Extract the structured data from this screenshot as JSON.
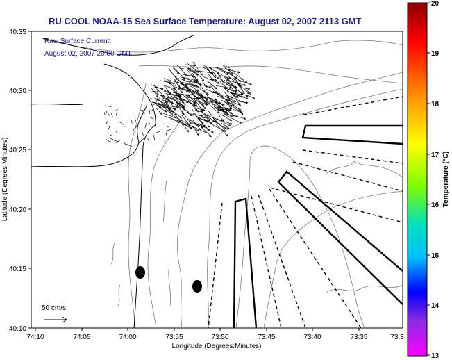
{
  "title": "RU COOL  NOAA-15  Sea Surface Temperature:  August 02, 2007 2113 GMT",
  "current_note": {
    "line1": "Raw Surface Current:",
    "line2": "August 02, 2007 20:00 GMT"
  },
  "scale_label": "50 cm/s",
  "xlabel": "Longitude (Degrees:Minutes)",
  "ylabel": "Latitude (Degrees:Minutes)",
  "colorbar_label": "Temperature (°C)",
  "colors": {
    "title": "#1a1a8c",
    "vectors": "#000000",
    "bathymetry": "#7a7a7a"
  },
  "colorbar": {
    "min": 13,
    "max": 20,
    "ticks": [
      "20",
      "19",
      "18",
      "17",
      "16",
      "15",
      "14",
      "13"
    ],
    "gradient": [
      "#8b0000",
      "#ff0000",
      "#ff8c00",
      "#ffff00",
      "#7cfc00",
      "#00e0c0",
      "#00bfff",
      "#0000ff",
      "#8a2be2",
      "#ff00ff"
    ]
  },
  "x_ticks": [
    "74:10",
    "74:05",
    "74:00",
    "73:55",
    "73:50",
    "73:45",
    "73:40",
    "73:35",
    "73:3"
  ],
  "y_ticks": [
    "40:35",
    "40:30",
    "40:25",
    "40:20",
    "40:15",
    "40:10"
  ],
  "map": {
    "lon_range_min": [
      -74.1667,
      -73.5
    ],
    "lat_range_min": [
      40.1667,
      40.5833
    ],
    "features": [
      "coastline",
      "bathymetry contours",
      "sampling boxes",
      "survey transects",
      "surface current vectors"
    ]
  }
}
